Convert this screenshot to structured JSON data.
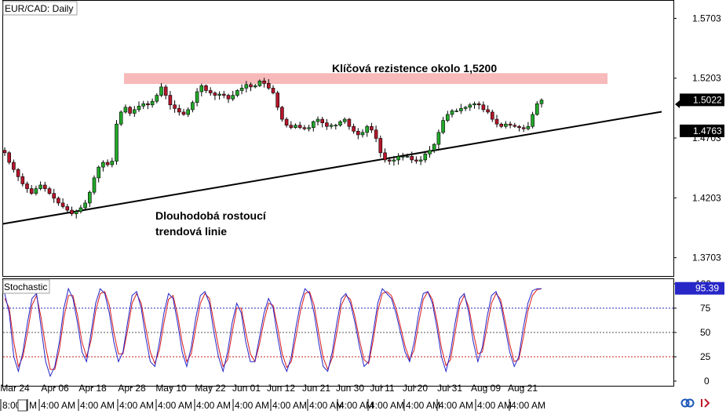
{
  "chart_data": {
    "type": "candlestick",
    "symbol_title": "EUR/CAD: Daily",
    "price_axis": {
      "ylim": [
        1.355,
        1.585
      ],
      "ticks": [
        "1.5703",
        "1.5203",
        "1.4703",
        "1.4203",
        "1.3703"
      ],
      "tick_values": [
        1.5703,
        1.5203,
        1.4703,
        1.4203,
        1.3703
      ]
    },
    "current_price": {
      "label": "1.5022",
      "value": 1.5022
    },
    "line_price": {
      "label": "1.4763",
      "value": 1.4763
    },
    "resistance_zone": {
      "from": 1.5155,
      "to": 1.5245,
      "label": "Klíčová rezistence okolo 1,5200"
    },
    "trendline": {
      "label_line1": "Dlouhodobá rostoucí",
      "label_line2": "trendová linie",
      "start_value": 1.3985,
      "end_value": 1.4923
    },
    "x_date_labels": [
      "Mar 24",
      "Apr 06",
      "Apr 18",
      "Apr 28",
      "May 10",
      "May 22",
      "Jun 01",
      "Jun 12",
      "Jun 21",
      "Jun 30",
      "Jul 11",
      "Jul 20",
      "Jul 31",
      "Aug 09",
      "Aug 21"
    ],
    "time_labels": [
      "8:00",
      "M",
      "4:00 AM",
      "4:00 AM",
      "4:00 AM",
      "4:00 AM",
      "4:00 AM",
      "4:00 AM",
      "4:00 AM",
      "4:00 AM",
      "4:00 AM",
      "4:00 AM",
      "4:00 AM",
      "4:00 AM",
      "4:00 AM",
      "4:00 AM"
    ],
    "close_path": [
      1.458,
      1.45,
      1.444,
      1.438,
      1.432,
      1.428,
      1.424,
      1.428,
      1.431,
      1.428,
      1.424,
      1.42,
      1.416,
      1.413,
      1.41,
      1.407,
      1.409,
      1.412,
      1.416,
      1.425,
      1.437,
      1.446,
      1.45,
      1.448,
      1.451,
      1.482,
      1.492,
      1.496,
      1.491,
      1.494,
      1.497,
      1.499,
      1.498,
      1.501,
      1.506,
      1.513,
      1.506,
      1.498,
      1.495,
      1.492,
      1.49,
      1.494,
      1.5,
      1.509,
      1.514,
      1.51,
      1.508,
      1.506,
      1.507,
      1.506,
      1.503,
      1.506,
      1.51,
      1.512,
      1.515,
      1.513,
      1.514,
      1.518,
      1.516,
      1.512,
      1.508,
      1.496,
      1.486,
      1.481,
      1.479,
      1.481,
      1.479,
      1.478,
      1.479,
      1.484,
      1.486,
      1.483,
      1.48,
      1.481,
      1.481,
      1.484,
      1.486,
      1.48,
      1.476,
      1.473,
      1.475,
      1.48,
      1.477,
      1.47,
      1.458,
      1.452,
      1.451,
      1.452,
      1.455,
      1.455,
      1.455,
      1.452,
      1.451,
      1.452,
      1.457,
      1.46,
      1.465,
      1.475,
      1.485,
      1.49,
      1.493,
      1.493,
      1.495,
      1.496,
      1.498,
      1.499,
      1.498,
      1.494,
      1.492,
      1.486,
      1.482,
      1.48,
      1.482,
      1.481,
      1.48,
      1.479,
      1.478,
      1.48,
      1.49,
      1.499,
      1.502
    ],
    "stochastic": {
      "label": "Stochastic",
      "ticks": [
        "100",
        "75",
        "50",
        "25",
        "0"
      ],
      "tick_values": [
        100,
        75,
        50,
        25,
        0
      ],
      "levels": [
        75,
        50,
        25
      ],
      "current_label": "95.39",
      "current_value": 95.39,
      "k_path": [
        90,
        70,
        25,
        10,
        30,
        60,
        85,
        90,
        55,
        20,
        5,
        15,
        40,
        75,
        95,
        85,
        60,
        30,
        20,
        50,
        80,
        95,
        90,
        70,
        40,
        20,
        30,
        60,
        88,
        92,
        75,
        45,
        20,
        15,
        40,
        70,
        90,
        85,
        60,
        30,
        15,
        35,
        65,
        88,
        92,
        80,
        50,
        25,
        10,
        30,
        60,
        80,
        70,
        40,
        20,
        20,
        45,
        70,
        85,
        75,
        45,
        20,
        10,
        25,
        55,
        80,
        95,
        90,
        70,
        40,
        15,
        10,
        30,
        60,
        85,
        90,
        80,
        60,
        35,
        15,
        20,
        50,
        80,
        95,
        90,
        85,
        70,
        50,
        30,
        20,
        40,
        70,
        90,
        92,
        80,
        55,
        25,
        10,
        30,
        60,
        85,
        90,
        70,
        40,
        20,
        35,
        65,
        88,
        92,
        80,
        55,
        30,
        15,
        25,
        55,
        80,
        93,
        95,
        95
      ],
      "d_path": [
        85,
        75,
        40,
        15,
        25,
        50,
        78,
        88,
        65,
        35,
        12,
        12,
        32,
        65,
        88,
        88,
        68,
        40,
        25,
        42,
        72,
        90,
        92,
        78,
        50,
        28,
        28,
        52,
        80,
        90,
        80,
        55,
        30,
        18,
        32,
        60,
        84,
        88,
        68,
        40,
        20,
        28,
        55,
        80,
        90,
        85,
        60,
        35,
        15,
        22,
        50,
        75,
        75,
        50,
        28,
        20,
        38,
        62,
        80,
        78,
        55,
        28,
        14,
        20,
        45,
        72,
        90,
        92,
        78,
        50,
        24,
        12,
        24,
        50,
        78,
        88,
        84,
        66,
        42,
        22,
        18,
        42,
        72,
        90,
        92,
        88,
        75,
        56,
        36,
        22,
        32,
        60,
        84,
        92,
        84,
        62,
        34,
        16,
        22,
        50,
        78,
        88,
        76,
        50,
        28,
        30,
        55,
        80,
        90,
        84,
        62,
        38,
        20,
        22,
        45,
        72,
        88,
        94,
        95
      ]
    }
  }
}
